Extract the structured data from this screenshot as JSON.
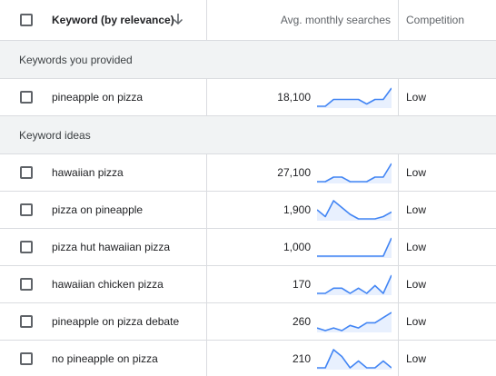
{
  "header": {
    "keyword_label": "Keyword (by relevance)",
    "sort_icon": "arrow-down-icon",
    "searches_label": "Avg. monthly searches",
    "competition_label": "Competition"
  },
  "colors": {
    "trend_line": "#4285f4",
    "trend_fill": "#e8f0fe",
    "group_bg": "#f1f3f4",
    "divider": "#dadce0"
  },
  "groups": [
    {
      "label": "Keywords you provided",
      "rows": [
        {
          "keyword": "pineapple on pizza",
          "searches": "18,100",
          "competition": "Low",
          "trend": [
            1,
            1,
            4,
            4,
            4,
            4,
            2,
            4,
            4,
            9
          ]
        }
      ]
    },
    {
      "label": "Keyword ideas",
      "rows": [
        {
          "keyword": "hawaiian pizza",
          "searches": "27,100",
          "competition": "Low",
          "trend": [
            1,
            1,
            3,
            3,
            1,
            1,
            1,
            3,
            3,
            9
          ]
        },
        {
          "keyword": "pizza on pineapple",
          "searches": "1,900",
          "competition": "Low",
          "trend": [
            5,
            2,
            9,
            6,
            3,
            1,
            1,
            1,
            2,
            4
          ]
        },
        {
          "keyword": "pizza hut hawaiian pizza",
          "searches": "1,000",
          "competition": "Low",
          "trend": [
            1,
            1,
            1,
            1,
            1,
            1,
            1,
            1,
            1,
            9
          ]
        },
        {
          "keyword": "hawaiian chicken pizza",
          "searches": "170",
          "competition": "Low",
          "trend": [
            2,
            2,
            4,
            4,
            2,
            4,
            2,
            5,
            2,
            9
          ]
        },
        {
          "keyword": "pineapple on pizza debate",
          "searches": "260",
          "competition": "Low",
          "trend": [
            3,
            2,
            3,
            2,
            4,
            3,
            5,
            5,
            7,
            9
          ]
        },
        {
          "keyword": "no pineapple on pizza",
          "searches": "210",
          "competition": "Low",
          "trend": [
            1,
            1,
            9,
            6,
            1,
            4,
            1,
            1,
            4,
            1
          ]
        }
      ]
    }
  ]
}
